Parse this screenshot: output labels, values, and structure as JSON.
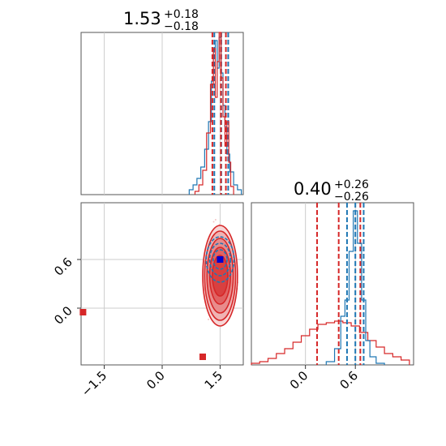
{
  "chart_data": [
    {
      "type": "histogram",
      "panel": "top-left",
      "title": {
        "value": "1.53",
        "plus": "+0.18",
        "minus": "−0.18"
      },
      "xlim": [
        -2.1,
        2.1
      ],
      "ylim": [
        0,
        1.0
      ],
      "grid": true,
      "series": [
        {
          "color": "#1f77b4",
          "bins": [
            [
              0.75,
              0.03
            ],
            [
              0.85,
              0.06
            ],
            [
              0.95,
              0.1
            ],
            [
              1.05,
              0.17
            ],
            [
              1.15,
              0.28
            ],
            [
              1.25,
              0.45
            ],
            [
              1.3,
              0.7
            ],
            [
              1.35,
              0.88
            ],
            [
              1.4,
              0.95
            ],
            [
              1.45,
              0.78
            ],
            [
              1.5,
              0.97
            ],
            [
              1.55,
              0.75
            ],
            [
              1.6,
              0.55
            ],
            [
              1.65,
              0.42
            ],
            [
              1.7,
              0.25
            ],
            [
              1.8,
              0.14
            ],
            [
              1.9,
              0.06
            ],
            [
              2.0,
              0.03
            ]
          ],
          "quantiles": [
            1.35,
            1.53,
            1.71
          ]
        },
        {
          "color": "#d62728",
          "bins": [
            [
              0.9,
              0.02
            ],
            [
              1.0,
              0.06
            ],
            [
              1.1,
              0.15
            ],
            [
              1.2,
              0.38
            ],
            [
              1.3,
              0.68
            ],
            [
              1.35,
              0.9
            ],
            [
              1.4,
              0.6
            ],
            [
              1.45,
              0.82
            ],
            [
              1.5,
              1.0
            ],
            [
              1.55,
              0.72
            ],
            [
              1.6,
              0.48
            ],
            [
              1.65,
              0.3
            ],
            [
              1.7,
              0.45
            ],
            [
              1.75,
              0.2
            ],
            [
              1.8,
              0.05
            ]
          ],
          "quantiles": [
            1.3,
            1.52,
            1.65
          ]
        }
      ]
    },
    {
      "type": "contour",
      "panel": "bottom-left",
      "xlim": [
        -2.1,
        2.1
      ],
      "ylim": [
        -0.7,
        1.3
      ],
      "xticks": [
        "−1.5",
        "0.0",
        "1.5"
      ],
      "yticks": [
        "0.0",
        "0.6"
      ],
      "grid": true,
      "series": [
        {
          "color": "#d62728",
          "center": [
            1.5,
            0.4
          ],
          "half_widths": [
            [
              0.45,
              0.62
            ],
            [
              0.4,
              0.55
            ],
            [
              0.34,
              0.46
            ],
            [
              0.27,
              0.35
            ],
            [
              0.2,
              0.25
            ]
          ],
          "outliers": [
            [
              -2.05,
              -0.05
            ],
            [
              1.05,
              -0.6
            ]
          ]
        },
        {
          "color": "#1f77b4",
          "center": [
            1.5,
            0.6
          ],
          "half_widths": [
            [
              0.36,
              0.28
            ],
            [
              0.27,
              0.2
            ],
            [
              0.18,
              0.12
            ]
          ]
        }
      ],
      "markers": [
        {
          "color": "#0000cc",
          "x": 1.5,
          "y": 0.6
        }
      ]
    },
    {
      "type": "histogram",
      "panel": "bottom-right",
      "title": {
        "value": "0.40",
        "plus": "+0.26",
        "minus": "−0.26"
      },
      "xlim": [
        -0.65,
        1.3
      ],
      "ylim": [
        0,
        1.0
      ],
      "xticks": [
        "0.0",
        "0.6"
      ],
      "grid": true,
      "series": [
        {
          "color": "#d62728",
          "bins": [
            [
              -0.6,
              0.01
            ],
            [
              -0.5,
              0.02
            ],
            [
              -0.4,
              0.04
            ],
            [
              -0.3,
              0.07
            ],
            [
              -0.2,
              0.1
            ],
            [
              -0.1,
              0.14
            ],
            [
              0.0,
              0.18
            ],
            [
              0.1,
              0.22
            ],
            [
              0.2,
              0.25
            ],
            [
              0.3,
              0.26
            ],
            [
              0.4,
              0.27
            ],
            [
              0.5,
              0.26
            ],
            [
              0.6,
              0.24
            ],
            [
              0.7,
              0.2
            ],
            [
              0.8,
              0.15
            ],
            [
              0.9,
              0.11
            ],
            [
              1.0,
              0.07
            ],
            [
              1.1,
              0.05
            ],
            [
              1.2,
              0.03
            ]
          ],
          "quantiles": [
            0.14,
            0.4,
            0.66
          ]
        },
        {
          "color": "#1f77b4",
          "bins": [
            [
              0.3,
              0.02
            ],
            [
              0.4,
              0.1
            ],
            [
              0.45,
              0.3
            ],
            [
              0.5,
              0.4
            ],
            [
              0.55,
              0.7
            ],
            [
              0.6,
              0.95
            ],
            [
              0.65,
              0.75
            ],
            [
              0.7,
              0.4
            ],
            [
              0.75,
              0.15
            ],
            [
              0.8,
              0.05
            ],
            [
              0.9,
              0.01
            ]
          ],
          "quantiles": [
            0.5,
            0.6,
            0.7
          ]
        }
      ]
    }
  ]
}
